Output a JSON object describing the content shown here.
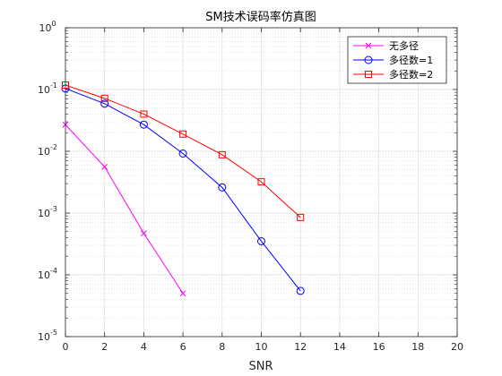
{
  "chart_data": {
    "type": "line",
    "title": "SM技术误码率仿真图",
    "xlabel": "SNR",
    "ylabel": "",
    "xlim": [
      0,
      20
    ],
    "ylim": [
      1e-05,
      1
    ],
    "yscale": "log",
    "grid": true,
    "minor_grid": true,
    "legend_position": "top-right",
    "x_ticks": [
      "0",
      "2",
      "4",
      "6",
      "8",
      "10",
      "12",
      "14",
      "16",
      "18",
      "20"
    ],
    "y_ticks": [
      {
        "base": "10",
        "exp": "-5"
      },
      {
        "base": "10",
        "exp": "-4"
      },
      {
        "base": "10",
        "exp": "-3"
      },
      {
        "base": "10",
        "exp": "-2"
      },
      {
        "base": "10",
        "exp": "-1"
      },
      {
        "base": "10",
        "exp": "0"
      }
    ],
    "series": [
      {
        "name": "无多径",
        "color": "#ff00ff",
        "marker": "x",
        "x": [
          0,
          2,
          4,
          6
        ],
        "y": [
          0.027,
          0.0056,
          0.00047,
          5e-05
        ]
      },
      {
        "name": "多径数=1",
        "color": "#0000ff",
        "marker": "circle",
        "x": [
          0,
          2,
          4,
          6,
          8,
          10,
          12
        ],
        "y": [
          0.104,
          0.059,
          0.027,
          0.0092,
          0.0026,
          0.00035,
          5.5e-05
        ]
      },
      {
        "name": "多径数=2",
        "color": "#ff0000",
        "marker": "square",
        "x": [
          0,
          2,
          4,
          6,
          8,
          10,
          12
        ],
        "y": [
          0.118,
          0.072,
          0.04,
          0.019,
          0.0088,
          0.0032,
          0.00085
        ]
      }
    ]
  }
}
